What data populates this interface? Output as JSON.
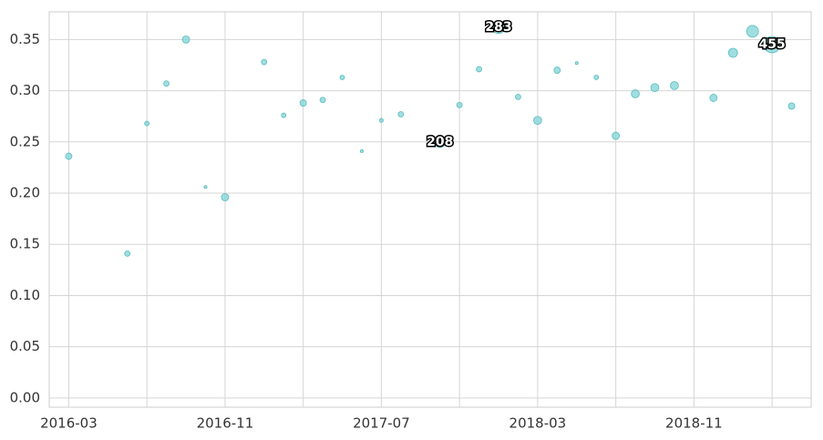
{
  "chart_data": {
    "type": "scatter",
    "series": [
      {
        "color": "#7fd3d6",
        "x": [
          "2016-03",
          "2016-06",
          "2016-07",
          "2016-08",
          "2016-09",
          "2016-10",
          "2016-11",
          "2017-01",
          "2017-02",
          "2017-03",
          "2017-04",
          "2017-05",
          "2017-06",
          "2017-07",
          "2017-08",
          "2017-10",
          "2017-11",
          "2017-12",
          "2018-01",
          "2018-02",
          "2018-03",
          "2018-04",
          "2018-05",
          "2018-06",
          "2018-07",
          "2018-08",
          "2018-09",
          "2018-10",
          "2018-12",
          "2019-01",
          "2019-02",
          "2019-03",
          "2019-04"
        ],
        "values": [
          0.236,
          0.141,
          0.268,
          0.307,
          0.35,
          0.206,
          0.196,
          0.328,
          0.276,
          0.288,
          0.291,
          0.313,
          0.241,
          0.271,
          0.277,
          0.25,
          0.286,
          0.321,
          0.362,
          0.294,
          0.271,
          0.32,
          0.327,
          0.313,
          0.256,
          0.297,
          0.303,
          0.305,
          0.293,
          0.337,
          0.358,
          0.345,
          0.285
        ],
        "sizes": [
          70,
          50,
          35,
          50,
          90,
          15,
          90,
          50,
          35,
          70,
          50,
          35,
          15,
          25,
          50,
          208,
          50,
          50,
          283,
          50,
          110,
          70,
          15,
          35,
          90,
          110,
          110,
          110,
          90,
          140,
          240,
          455,
          70
        ]
      }
    ],
    "size_labels_at": [
      "2017-10",
      "2018-01",
      "2019-03"
    ],
    "xlim": [
      "2016-02",
      "2019-05"
    ],
    "xticks": [
      "2016-03",
      {
        "value": "2016-07"
      },
      "2016-11",
      {
        "value": "2017-03"
      },
      "2017-07",
      {
        "value": "2017-11"
      },
      "2018-03",
      {
        "value": "2018-07"
      },
      "2018-11",
      {
        "value": "2019-03"
      }
    ],
    "ylim": [
      -0.009,
      0.377
    ],
    "yticks": [
      {
        "value": 0,
        "label": "0.00"
      },
      0.05,
      {
        "value": 0.1,
        "label": "0.10"
      },
      0.15,
      {
        "value": 0.2,
        "label": "0.20"
      },
      0.25,
      {
        "value": 0.3,
        "label": "0.30"
      },
      0.35
    ],
    "grid": true
  }
}
